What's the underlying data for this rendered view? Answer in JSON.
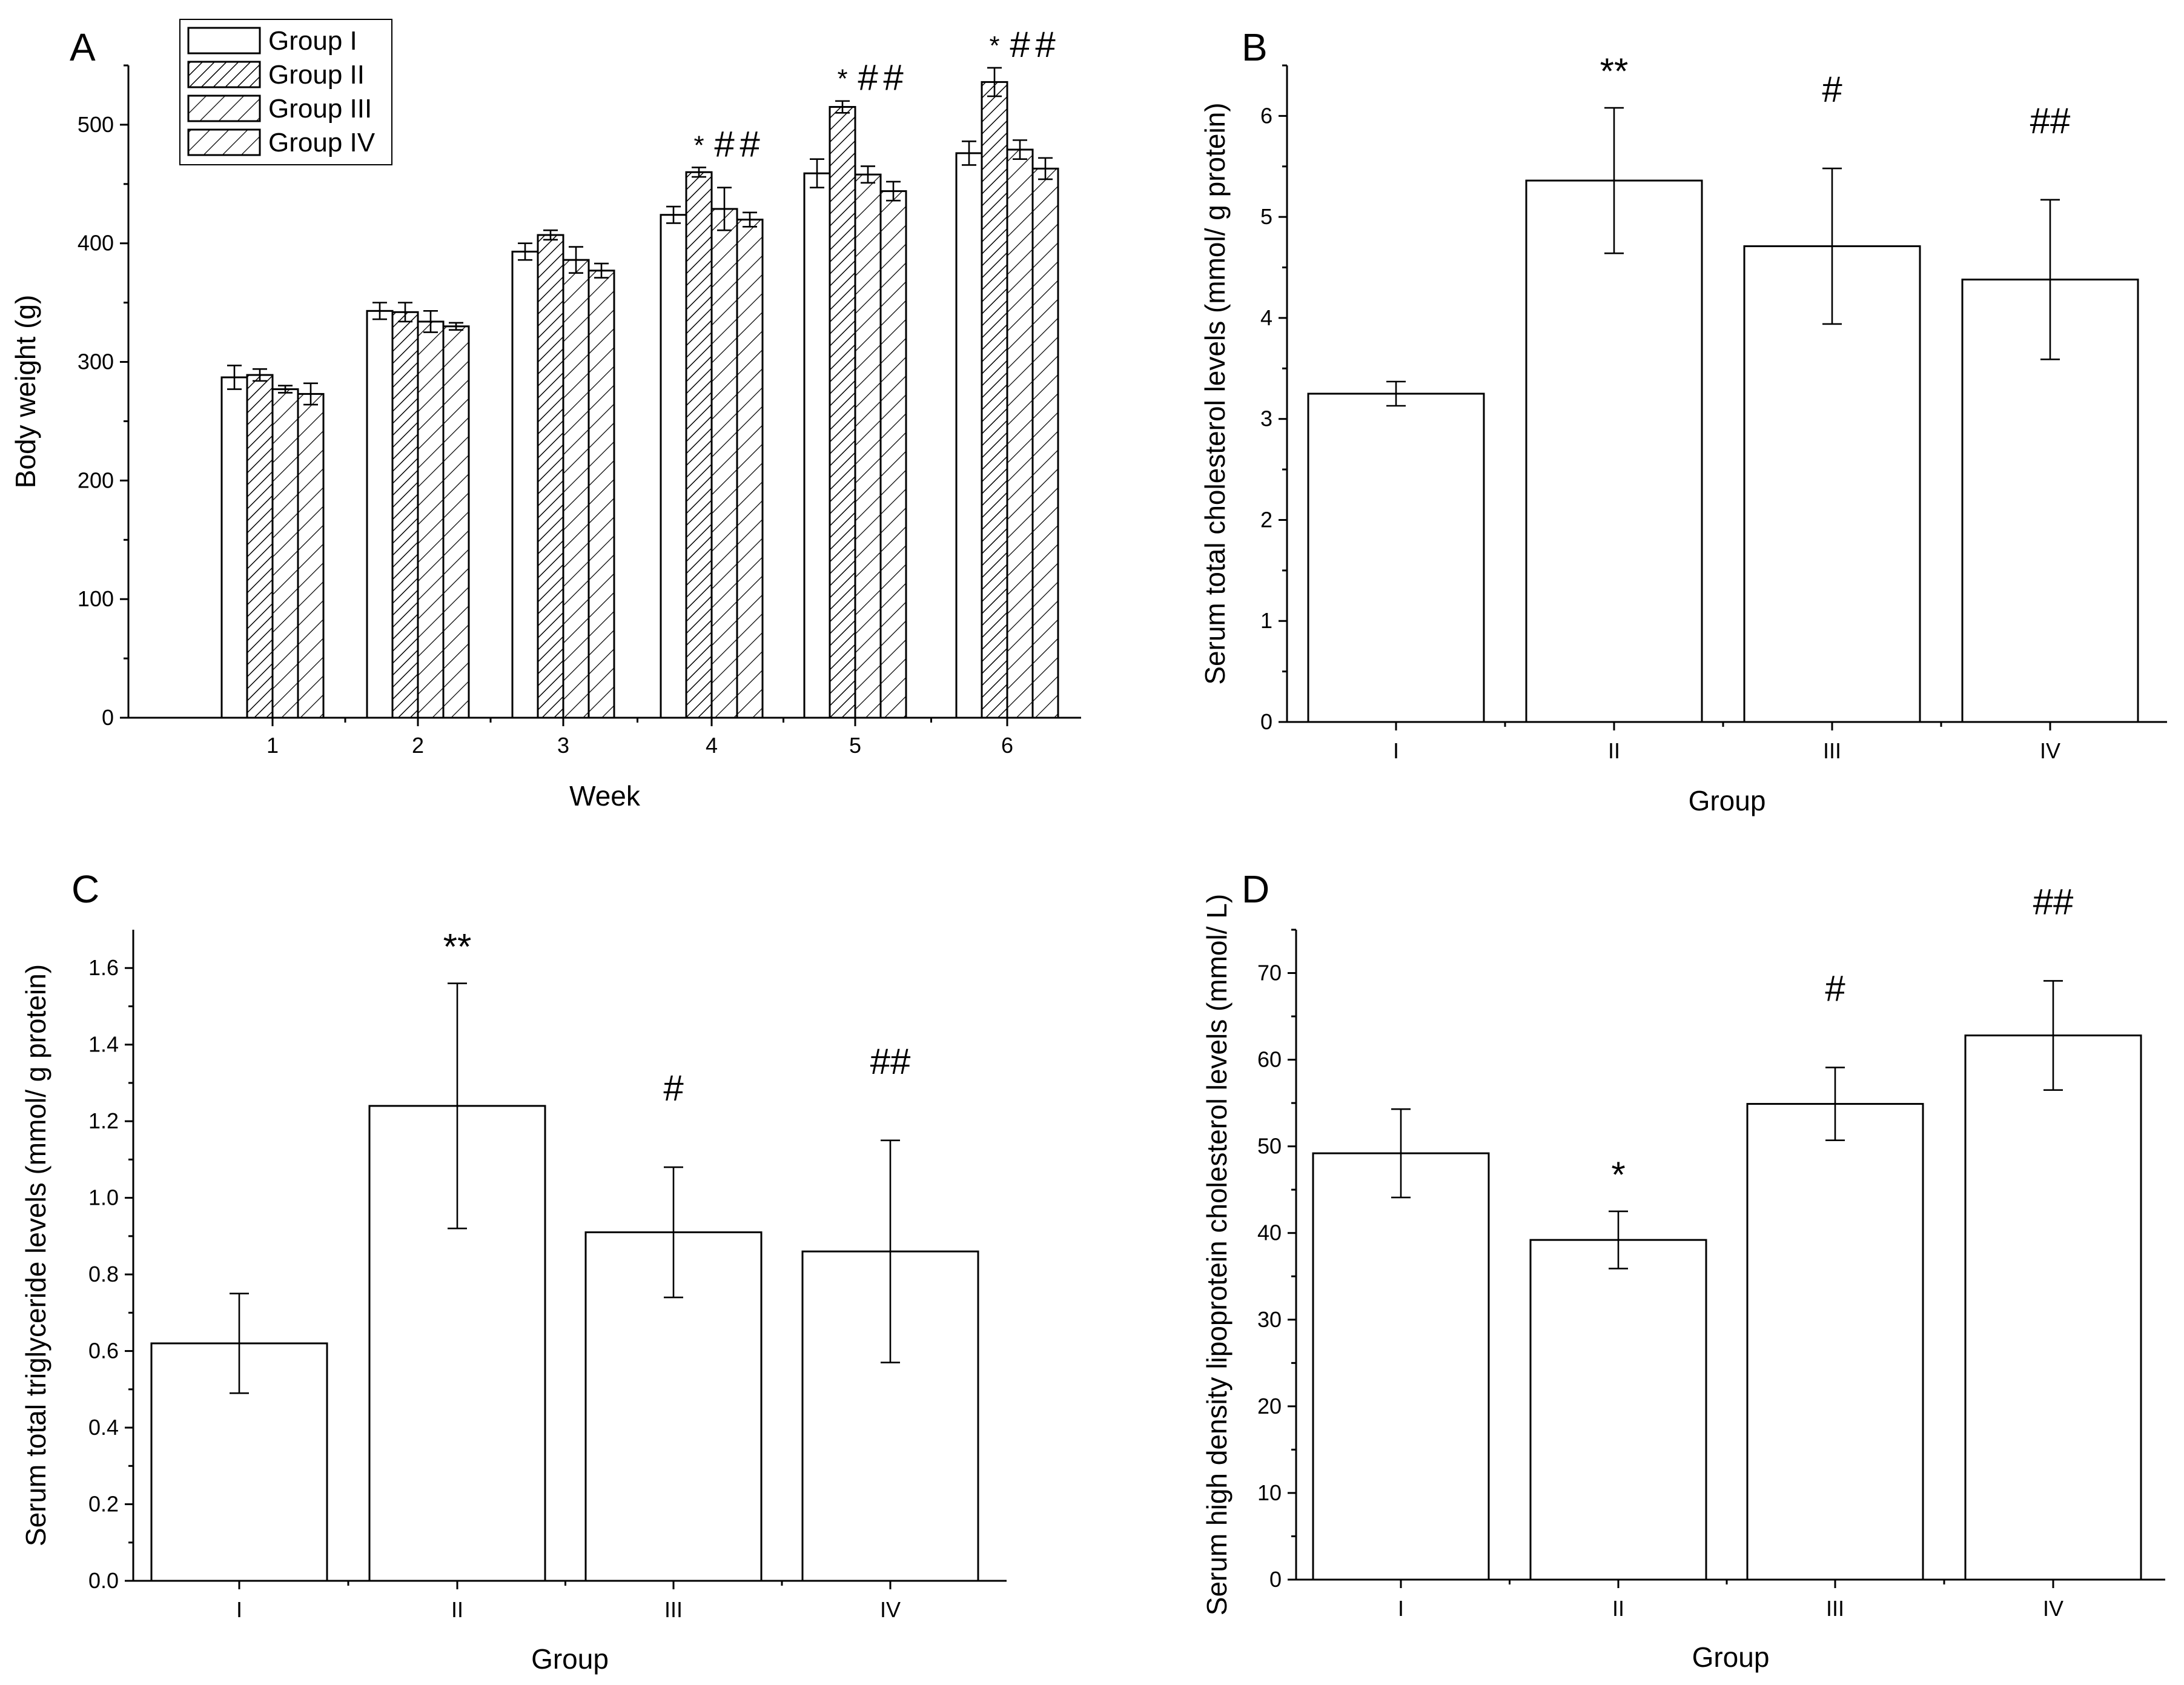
{
  "chart_data": [
    {
      "panel": "A",
      "type": "bar",
      "xlabel": "Week",
      "ylabel": "Body weight (g)",
      "ylim": [
        0,
        550
      ],
      "yticks": [
        0,
        100,
        200,
        300,
        400,
        500
      ],
      "categories": [
        "1",
        "2",
        "3",
        "4",
        "5",
        "6"
      ],
      "legend_position": "top-left",
      "series": [
        {
          "name": "Group I",
          "pattern": "none",
          "values": [
            287,
            343,
            393,
            424,
            459,
            476
          ],
          "errors": [
            10,
            7,
            7,
            7,
            12,
            10
          ]
        },
        {
          "name": "Group II",
          "pattern": "dense",
          "values": [
            289,
            342,
            407,
            460,
            515,
            536
          ],
          "errors": [
            5,
            8,
            4,
            4,
            5,
            12
          ]
        },
        {
          "name": "Group III",
          "pattern": "hatch",
          "values": [
            277,
            334,
            386,
            429,
            458,
            479
          ],
          "errors": [
            3,
            9,
            11,
            18,
            7,
            8
          ]
        },
        {
          "name": "Group IV",
          "pattern": "hatch",
          "values": [
            273,
            330,
            377,
            420,
            444,
            463
          ],
          "errors": [
            9,
            3,
            6,
            6,
            8,
            9
          ]
        }
      ],
      "annotations": [
        {
          "category": "4",
          "series": 1,
          "text": "*"
        },
        {
          "category": "4",
          "series": 2,
          "text": "#"
        },
        {
          "category": "4",
          "series": 3,
          "text": "#"
        },
        {
          "category": "5",
          "series": 1,
          "text": "*"
        },
        {
          "category": "5",
          "series": 2,
          "text": "#"
        },
        {
          "category": "5",
          "series": 3,
          "text": "#"
        },
        {
          "category": "6",
          "series": 1,
          "text": "*"
        },
        {
          "category": "6",
          "series": 2,
          "text": "#"
        },
        {
          "category": "6",
          "series": 3,
          "text": "#"
        }
      ]
    },
    {
      "panel": "B",
      "type": "bar",
      "xlabel": "Group",
      "ylabel": "Serum total cholesterol levels (mmol/ g protein)",
      "ylim": [
        0,
        6.5
      ],
      "yticks": [
        0,
        1,
        2,
        3,
        4,
        5,
        6
      ],
      "categories": [
        "I",
        "II",
        "III",
        "IV"
      ],
      "values": [
        3.25,
        5.36,
        4.71,
        4.38
      ],
      "errors": [
        0.12,
        0.72,
        0.77,
        0.79
      ],
      "annotations": [
        "",
        "**",
        "#",
        "##"
      ]
    },
    {
      "panel": "C",
      "type": "bar",
      "xlabel": "Group",
      "ylabel": "Serum total  triglyceride levels (mmol/ g protein)",
      "ylim": [
        0,
        1.7
      ],
      "yticks": [
        0.0,
        0.2,
        0.4,
        0.6,
        0.8,
        1.0,
        1.2,
        1.4,
        1.6
      ],
      "categories": [
        "I",
        "II",
        "III",
        "IV"
      ],
      "values": [
        0.62,
        1.24,
        0.91,
        0.86
      ],
      "errors": [
        0.13,
        0.32,
        0.17,
        0.29
      ],
      "annotations": [
        "",
        "**",
        "#",
        "##"
      ]
    },
    {
      "panel": "D",
      "type": "bar",
      "xlabel": "Group",
      "ylabel": "Serum high density lipoprotein cholesterol levels (mmol/ L)",
      "ylim": [
        0,
        75
      ],
      "yticks": [
        0,
        10,
        20,
        30,
        40,
        50,
        60,
        70
      ],
      "categories": [
        "I",
        "II",
        "III",
        "IV"
      ],
      "values": [
        49.2,
        39.2,
        54.9,
        62.8
      ],
      "errors": [
        5.1,
        3.3,
        4.2,
        6.3
      ],
      "annotations": [
        "",
        "*",
        "#",
        "##"
      ]
    }
  ]
}
